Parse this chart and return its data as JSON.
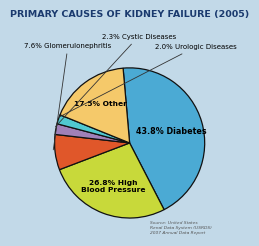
{
  "title": "PRIMARY CAUSES OF KIDNEY FAILURE (2005)",
  "slices": [
    {
      "label": "43.8% Diabetes",
      "value": 43.8,
      "color": "#4baad4"
    },
    {
      "label": "26.8% High\nBlood Pressure",
      "value": 26.8,
      "color": "#c8d93a"
    },
    {
      "label": "7.6% Glomerulonephritis",
      "value": 7.6,
      "color": "#e0572a"
    },
    {
      "label": "2.3% Cystic Diseases",
      "value": 2.3,
      "color": "#a080b8"
    },
    {
      "label": "2.0% Urologic Diseases",
      "value": 2.0,
      "color": "#50c8d0"
    },
    {
      "label": "17.5% Other",
      "value": 17.5,
      "color": "#f5c96a"
    }
  ],
  "background_color": "#c2d9e8",
  "title_color": "#1a3a6e",
  "title_fontsize": 6.8,
  "source_text": "Source: United States\nRenal Data System (USRDS)\n2007 Annual Data Report",
  "outline_color": "#111111",
  "inner_labels": [
    {
      "idx": 0,
      "text": "43.8% Diabetes",
      "r": 0.58,
      "fontsize": 5.8
    },
    {
      "idx": 1,
      "text": "26.8% High\nBlood Pressure",
      "r": 0.62,
      "fontsize": 5.4
    },
    {
      "idx": 5,
      "text": "17.5% Other",
      "r": 0.65,
      "fontsize": 5.4
    }
  ],
  "external_labels": [
    {
      "idx": 2,
      "text": "7.6% Glomerulonephritis",
      "xt": -0.82,
      "yt": 1.3,
      "fontsize": 5.0
    },
    {
      "idx": 3,
      "text": "2.3% Cystic Diseases",
      "xt": 0.12,
      "yt": 1.42,
      "fontsize": 5.0
    },
    {
      "idx": 4,
      "text": "2.0% Urologic Diseases",
      "xt": 0.88,
      "yt": 1.28,
      "fontsize": 5.0
    }
  ]
}
